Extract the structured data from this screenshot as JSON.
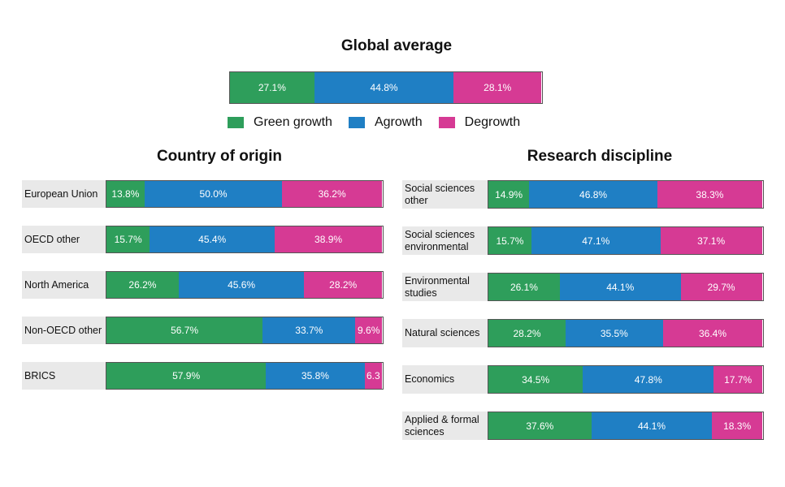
{
  "chart_data": [
    {
      "type": "stacked-bar",
      "title": "Global average",
      "categories": [
        null
      ],
      "xlim": [
        0,
        100
      ],
      "legend": "bottom",
      "series": [
        {
          "name": "Green growth",
          "color": "#2e9e5b",
          "values": [
            27.1
          ],
          "value_labels": [
            "27.1%"
          ]
        },
        {
          "name": "Agrowth",
          "color": "#1f7fc4",
          "values": [
            44.8
          ],
          "value_labels": [
            "44.8%"
          ]
        },
        {
          "name": "Degrowth",
          "color": "#d63a94",
          "values": [
            28.1
          ],
          "value_labels": [
            "28.1%"
          ]
        }
      ]
    },
    {
      "type": "stacked-bar",
      "title": "Country of origin",
      "xlim": [
        0,
        100
      ],
      "categories": [
        "European Union",
        "OECD other",
        "North America",
        "Non-OECD other",
        "BRICS"
      ],
      "series": [
        {
          "color": "#2e9e5b",
          "values": [
            13.8,
            15.7,
            26.2,
            56.7,
            57.9
          ],
          "value_labels": [
            "13.8%",
            "15.7%",
            "26.2%",
            "56.7%",
            "57.9%"
          ]
        },
        {
          "color": "#1f7fc4",
          "values": [
            50.0,
            45.4,
            45.6,
            33.7,
            35.8
          ],
          "value_labels": [
            "50.0%",
            "45.4%",
            "45.6%",
            "33.7%",
            "35.8%"
          ]
        },
        {
          "color": "#d63a94",
          "values": [
            36.2,
            38.9,
            28.2,
            9.6,
            6.3
          ],
          "value_labels": [
            "36.2%",
            "38.9%",
            "28.2%",
            "9.6%",
            "6.3"
          ]
        }
      ]
    },
    {
      "type": "stacked-bar",
      "title": "Research discipline",
      "xlim": [
        0,
        100
      ],
      "categories": [
        "Social sciences other",
        "Social sciences environmental",
        "Environmental studies",
        "Natural sciences",
        "Economics",
        "Applied & formal sciences"
      ],
      "series": [
        {
          "color": "#2e9e5b",
          "values": [
            14.9,
            15.7,
            26.1,
            28.2,
            34.5,
            37.6
          ],
          "value_labels": [
            "14.9%",
            "15.7%",
            "26.1%",
            "28.2%",
            "34.5%",
            "37.6%"
          ]
        },
        {
          "color": "#1f7fc4",
          "values": [
            46.8,
            47.1,
            44.1,
            35.5,
            47.8,
            44.1
          ],
          "value_labels": [
            "46.8%",
            "47.1%",
            "44.1%",
            "35.5%",
            "47.8%",
            "44.1%"
          ]
        },
        {
          "color": "#d63a94",
          "values": [
            38.3,
            37.1,
            29.7,
            36.4,
            17.7,
            18.3
          ],
          "value_labels": [
            "38.3%",
            "37.1%",
            "29.7%",
            "36.4%",
            "17.7%",
            "18.3%"
          ]
        }
      ]
    }
  ]
}
